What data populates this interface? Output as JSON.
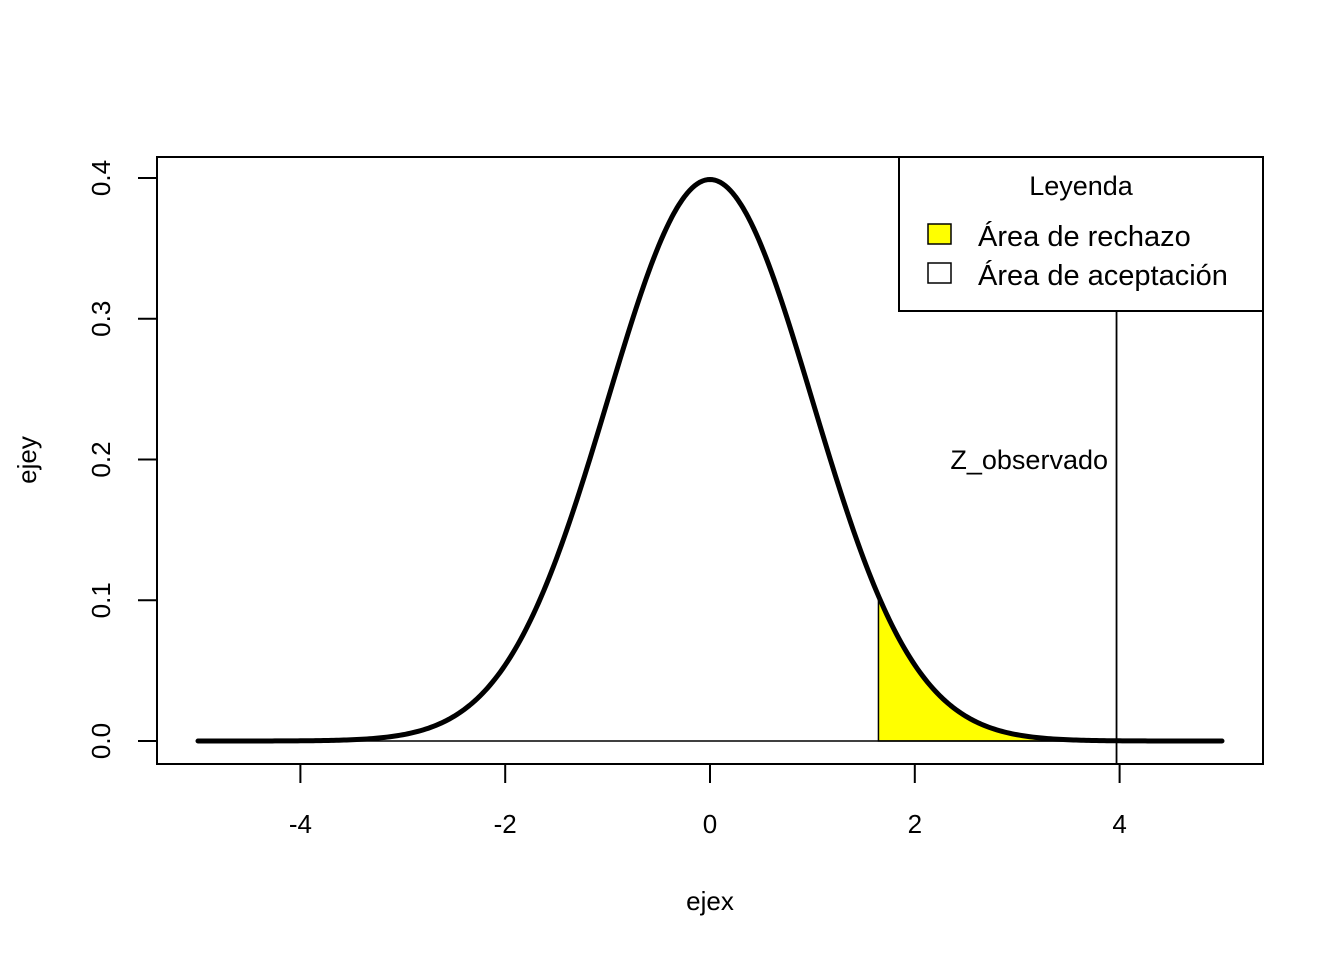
{
  "chart_data": {
    "type": "line",
    "title": "",
    "xlabel": "ejex",
    "ylabel": "ejey",
    "xlim": [
      -5,
      5
    ],
    "ylim": [
      0,
      0.4
    ],
    "xticks": [
      -4,
      -2,
      0,
      2,
      4
    ],
    "xtick_labels": [
      "-4",
      "-2",
      "0",
      "2",
      "4"
    ],
    "yticks": [
      0.0,
      0.1,
      0.2,
      0.3,
      0.4
    ],
    "ytick_labels": [
      "0.0",
      "0.1",
      "0.2",
      "0.3",
      "0.4"
    ],
    "series": [
      {
        "curve": "standard-normal-density",
        "x_range": [
          -5,
          5
        ],
        "color": "#000000"
      }
    ],
    "rejection_region": {
      "x_from": 1.645,
      "x_to": 5,
      "color": "#ffff00"
    },
    "vertical_line": {
      "x": 3.97,
      "color": "#000000"
    },
    "annotation": {
      "text": "Z_observado",
      "x": 3.0,
      "y": 0.2
    },
    "legend": {
      "title": "Leyenda",
      "placement": "top-right",
      "entries": [
        {
          "label": "Área de rechazo",
          "color": "#ffff00"
        },
        {
          "label": "Área de aceptación",
          "color": "#ffffff"
        }
      ]
    },
    "grid": false
  }
}
